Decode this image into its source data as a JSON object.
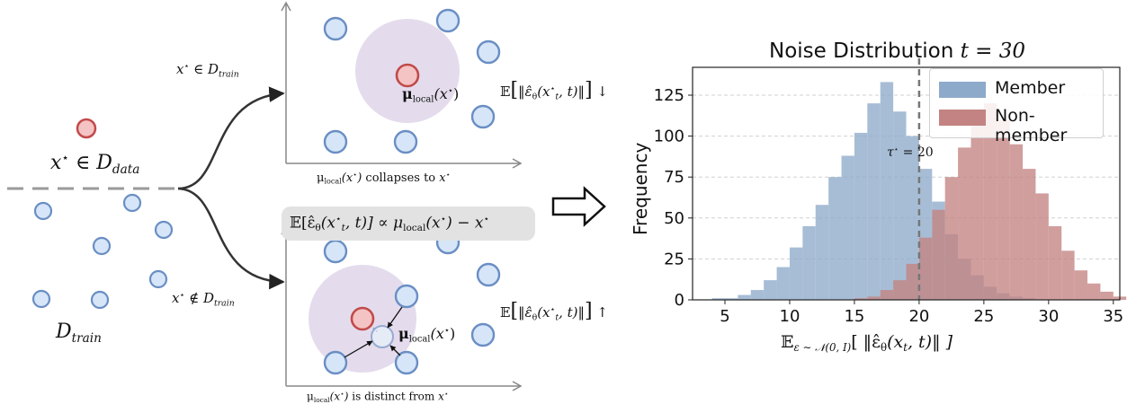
{
  "left_panel": {
    "query_label": "x",
    "query_set": "D",
    "query_set_sub": "data",
    "train_set": "D",
    "train_set_sub": "train",
    "member_branch_label": "x",
    "member_branch_set": "D",
    "member_branch_sub": "train",
    "nonmember_branch_label": "x",
    "nonmember_branch_set": "D",
    "nonmember_branch_sub": "train"
  },
  "top_panel": {
    "mu_label": "μ",
    "mu_sub": "local",
    "mu_arg": "(x",
    "caption": "collapses to",
    "expectation_arrow": "↓"
  },
  "middle": {
    "formula_lhs": "𝔼[ε̂",
    "formula_sub": "θ",
    "formula_mid": "(x",
    "formula_rhs": ", t)] ∝ μ",
    "formula_local": "local",
    "formula_tail": "(x",
    "formula_end": ") − x"
  },
  "bottom_panel": {
    "mu_label": "μ",
    "mu_sub": "local",
    "mu_arg": "(x",
    "caption": "is distinct from",
    "expectation_arrow": "↑"
  },
  "expectation_text": {
    "prefix": "𝔼",
    "body": "‖ε̂",
    "sub": "θ",
    "arg": "(x",
    "arg_sub": "t",
    "tail": ", t)‖"
  },
  "chart_data": {
    "type": "bar",
    "title": "Noise Distribution ",
    "title_math": "t = 30",
    "xlabel": "𝔼",
    "xlabel_sub": "ε ∼ 𝒩(0, I)",
    "xlabel_tail": "[ ‖ε̂",
    "xlabel_theta": "θ",
    "xlabel_end": "(x",
    "xlabel_t": "t",
    "xlabel_close": ", t)‖ ]",
    "ylabel": "Frequency",
    "xlim": [
      2.5,
      35.5
    ],
    "ylim": [
      0,
      142
    ],
    "xticks": [
      5,
      10,
      15,
      20,
      25,
      30,
      35
    ],
    "yticks": [
      0,
      25,
      50,
      75,
      100,
      125
    ],
    "grid": "horizontal dashed",
    "legend_position": "top-right",
    "threshold": {
      "x": 20,
      "label": "τ",
      "label_tail": " = 20"
    },
    "bin_width": 1,
    "series": [
      {
        "name": "Member",
        "color": "#8eaacb",
        "bins_start": 4,
        "values": [
          1,
          1,
          3,
          6,
          12,
          20,
          32,
          45,
          58,
          75,
          88,
          102,
          120,
          133,
          115,
          100,
          80,
          60,
          40,
          25,
          15,
          8,
          4,
          2,
          1
        ]
      },
      {
        "name": "Non-member",
        "color": "#c38382",
        "bins_start": 15,
        "values": [
          1,
          2,
          6,
          12,
          22,
          38,
          55,
          75,
          93,
          112,
          120,
          110,
          95,
          80,
          65,
          45,
          30,
          18,
          10,
          5,
          2
        ]
      }
    ]
  },
  "colors": {
    "point_fill": "#d6e6f8",
    "point_stroke": "#6a8ec4",
    "query_fill": "#f4c3c3",
    "query_stroke": "#c24a4a",
    "halo": "#e4dcec"
  }
}
